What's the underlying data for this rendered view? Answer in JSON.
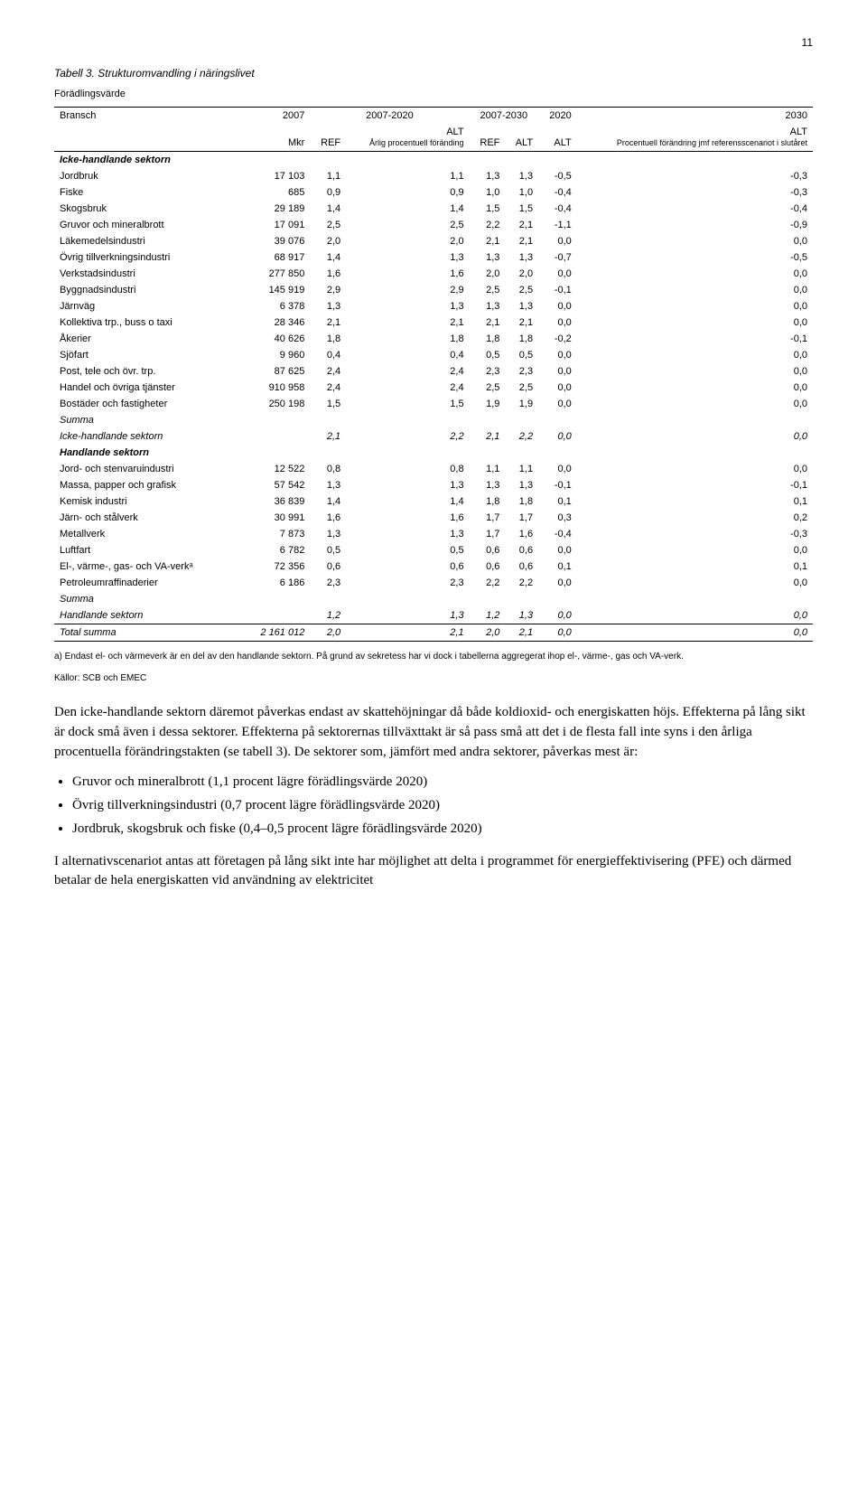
{
  "page_number": "11",
  "table": {
    "title": "Tabell 3. Strukturomvandling i näringslivet",
    "subtitle": "Förädlingsvärde",
    "header1": {
      "bransch": "Bransch",
      "y2007": "2007",
      "y2007_2020": "2007-2020",
      "y2007_2030": "2007-2030",
      "y2020": "2020",
      "y2030": "2030"
    },
    "header2": {
      "col1": "",
      "col2": "Mkr",
      "col3_4": "Årlig procentuell föränding",
      "col3": "REF",
      "col4": "ALT",
      "col5": "REF",
      "col6": "ALT",
      "col7": "ALT",
      "col8": "ALT",
      "right_label": "Procentuell förändring jmf referensscenariot i slutåret"
    },
    "sections": [
      {
        "name": "Icke-handlande sektorn",
        "rows": [
          {
            "label": "Jordbruk",
            "v": [
              "17 103",
              "1,1",
              "1,1",
              "1,3",
              "1,3",
              "-0,5",
              "-0,3"
            ]
          },
          {
            "label": "Fiske",
            "v": [
              "685",
              "0,9",
              "0,9",
              "1,0",
              "1,0",
              "-0,4",
              "-0,3"
            ]
          },
          {
            "label": "Skogsbruk",
            "v": [
              "29 189",
              "1,4",
              "1,4",
              "1,5",
              "1,5",
              "-0,4",
              "-0,4"
            ]
          },
          {
            "label": "Gruvor och mineralbrott",
            "v": [
              "17 091",
              "2,5",
              "2,5",
              "2,2",
              "2,1",
              "-1,1",
              "-0,9"
            ]
          },
          {
            "label": "Läkemedelsindustri",
            "v": [
              "39 076",
              "2,0",
              "2,0",
              "2,1",
              "2,1",
              "0,0",
              "0,0"
            ]
          },
          {
            "label": "Övrig tillverkningsindustri",
            "v": [
              "68 917",
              "1,4",
              "1,3",
              "1,3",
              "1,3",
              "-0,7",
              "-0,5"
            ]
          },
          {
            "label": "Verkstadsindustri",
            "v": [
              "277 850",
              "1,6",
              "1,6",
              "2,0",
              "2,0",
              "0,0",
              "0,0"
            ]
          },
          {
            "label": "Byggnadsindustri",
            "v": [
              "145 919",
              "2,9",
              "2,9",
              "2,5",
              "2,5",
              "-0,1",
              "0,0"
            ]
          },
          {
            "label": "Järnväg",
            "v": [
              "6 378",
              "1,3",
              "1,3",
              "1,3",
              "1,3",
              "0,0",
              "0,0"
            ]
          },
          {
            "label": "Kollektiva trp., buss o taxi",
            "v": [
              "28 346",
              "2,1",
              "2,1",
              "2,1",
              "2,1",
              "0,0",
              "0,0"
            ]
          },
          {
            "label": "Åkerier",
            "v": [
              "40 626",
              "1,8",
              "1,8",
              "1,8",
              "1,8",
              "-0,2",
              "-0,1"
            ]
          },
          {
            "label": "Sjöfart",
            "v": [
              "9 960",
              "0,4",
              "0,4",
              "0,5",
              "0,5",
              "0,0",
              "0,0"
            ]
          },
          {
            "label": "Post, tele och övr. trp.",
            "v": [
              "87 625",
              "2,4",
              "2,4",
              "2,3",
              "2,3",
              "0,0",
              "0,0"
            ]
          },
          {
            "label": "Handel och övriga tjänster",
            "v": [
              "910 958",
              "2,4",
              "2,4",
              "2,5",
              "2,5",
              "0,0",
              "0,0"
            ]
          },
          {
            "label": "Bostäder och fastigheter",
            "v": [
              "250 198",
              "1,5",
              "1,5",
              "1,9",
              "1,9",
              "0,0",
              "0,0"
            ]
          }
        ],
        "summary": {
          "label": "Summa",
          "label2": "Icke-handlande sektorn",
          "v": [
            "",
            "2,1",
            "2,2",
            "2,1",
            "2,2",
            "0,0",
            "0,0"
          ]
        }
      },
      {
        "name": "Handlande sektorn",
        "rows": [
          {
            "label": "Jord- och stenvaruindustri",
            "v": [
              "12 522",
              "0,8",
              "0,8",
              "1,1",
              "1,1",
              "0,0",
              "0,0"
            ]
          },
          {
            "label": "Massa, papper och grafisk",
            "v": [
              "57 542",
              "1,3",
              "1,3",
              "1,3",
              "1,3",
              "-0,1",
              "-0,1"
            ]
          },
          {
            "label": "Kemisk industri",
            "v": [
              "36 839",
              "1,4",
              "1,4",
              "1,8",
              "1,8",
              "0,1",
              "0,1"
            ]
          },
          {
            "label": "Järn- och stålverk",
            "v": [
              "30 991",
              "1,6",
              "1,6",
              "1,7",
              "1,7",
              "0,3",
              "0,2"
            ]
          },
          {
            "label": "Metallverk",
            "v": [
              "7 873",
              "1,3",
              "1,3",
              "1,7",
              "1,6",
              "-0,4",
              "-0,3"
            ]
          },
          {
            "label": "Luftfart",
            "v": [
              "6 782",
              "0,5",
              "0,5",
              "0,6",
              "0,6",
              "0,0",
              "0,0"
            ]
          },
          {
            "label": "El-, värme-, gas- och VA-verkᵃ",
            "v": [
              "72 356",
              "0,6",
              "0,6",
              "0,6",
              "0,6",
              "0,1",
              "0,1"
            ]
          },
          {
            "label": "Petroleumraffinaderier",
            "v": [
              "6 186",
              "2,3",
              "2,3",
              "2,2",
              "2,2",
              "0,0",
              "0,0"
            ]
          }
        ],
        "summary": {
          "label": "Summa",
          "label2": "Handlande sektorn",
          "v": [
            "",
            "1,2",
            "1,3",
            "1,2",
            "1,3",
            "0,0",
            "0,0"
          ]
        }
      }
    ],
    "total": {
      "label": "Total summa",
      "v": [
        "2 161 012",
        "2,0",
        "2,1",
        "2,0",
        "2,1",
        "0,0",
        "0,0"
      ]
    }
  },
  "footnotes": {
    "a": "a) Endast el- och värmeverk är en del av den handlande sektorn. På grund av sekretess har vi dock i tabellerna aggregerat ihop el-, värme-, gas och VA-verk.",
    "sources": "Källor: SCB och EMEC"
  },
  "body": {
    "p1": "Den icke-handlande sektorn däremot påverkas endast av skattehöjningar då både koldioxid- och energiskatten höjs. Effekterna på lång sikt är dock små även i dessa sektorer. Effekterna på sektorernas tillväxttakt är så pass små att det i de flesta fall inte syns i den årliga procentuella förändringstakten (se tabell 3). De sektorer som, jämfört med andra sektorer, påverkas mest är:",
    "bullets": [
      "Gruvor och mineralbrott (1,1 procent lägre förädlingsvärde 2020)",
      "Övrig tillverkningsindustri (0,7 procent lägre förädlingsvärde 2020)",
      "Jordbruk, skogsbruk och fiske (0,4–0,5 procent lägre förädlingsvärde 2020)"
    ],
    "p2": "I alternativscenariot antas att företagen på lång sikt inte har möjlighet att delta i programmet för energieffektivisering (PFE) och därmed betalar de hela energiskatten vid användning av elektricitet"
  }
}
